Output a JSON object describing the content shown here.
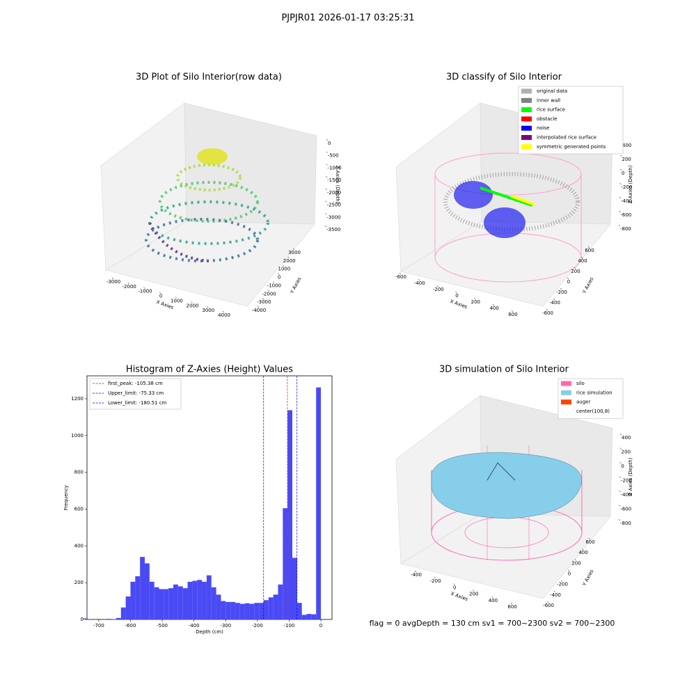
{
  "title": "PJPJR01 2026-01-17 03:25:31",
  "status": "flag = 0     avgDepth = 130 cm  sv1 = 700~2300  sv2 = 700~2300",
  "chart_data": [
    {
      "type": "scatter3d",
      "title": "3D Plot of Silo Interior(row data)",
      "x_label": "X Axies",
      "y_label": "Y Axies",
      "z_label": "Z Axies (Depth)",
      "xticks": [
        -3000,
        -2000,
        -1000,
        0,
        1000,
        2000,
        3000,
        4000
      ],
      "yticks": [
        -4000,
        -3000,
        -2000,
        -1000,
        0,
        1000,
        2000,
        3000
      ],
      "zticks": [
        0,
        -500,
        -1000,
        -1500,
        -2000,
        -2500,
        -3000,
        -3500
      ]
    },
    {
      "type": "scatter3d",
      "title": "3D classify of Silo Interior",
      "x_label": "X Axies",
      "y_label": "Y Axies",
      "z_label": "Z Axies (Depth)",
      "xticks": [
        -600,
        -400,
        -200,
        0,
        200,
        400,
        600
      ],
      "yticks": [
        -600,
        -400,
        -200,
        0,
        200,
        400,
        600
      ],
      "zticks": [
        400,
        200,
        0,
        -200,
        -400,
        -600,
        -800
      ],
      "legend": "upper right",
      "series": [
        {
          "name": "original data",
          "color": "#b0b0b0"
        },
        {
          "name": "inner wall",
          "color": "#808080"
        },
        {
          "name": "rice surface",
          "color": "#00ff00"
        },
        {
          "name": "obstacle",
          "color": "#ff0000"
        },
        {
          "name": "noise",
          "color": "#0000ff"
        },
        {
          "name": "interpolated rice surface",
          "color": "#800080"
        },
        {
          "name": "symmetric generated points",
          "color": "#ffff00"
        }
      ]
    },
    {
      "type": "histogram",
      "title": "Histogram of Z-Axies (Height) Values",
      "x_label": "Depth (cm)",
      "y_label": "Frequency",
      "color": "#4a4af5",
      "xlim": [
        -737,
        35
      ],
      "ylim": [
        0,
        1325
      ],
      "xticks": [
        -700,
        -600,
        -500,
        -400,
        -300,
        -200,
        -100,
        0
      ],
      "yticks": [
        0,
        200,
        400,
        600,
        800,
        1000,
        1200
      ],
      "bins": [
        -750,
        -735,
        -720,
        -705,
        -690,
        -675,
        -660,
        -645,
        -630,
        -615,
        -600,
        -585,
        -570,
        -555,
        -540,
        -525,
        -510,
        -495,
        -480,
        -465,
        -450,
        -435,
        -420,
        -405,
        -390,
        -375,
        -360,
        -345,
        -330,
        -315,
        -300,
        -285,
        -270,
        -255,
        -240,
        -225,
        -210,
        -195,
        -180,
        -165,
        -150,
        -135,
        -120,
        -105,
        -90,
        -75,
        -60,
        -45,
        -30,
        -15,
        0
      ],
      "counts": [
        5,
        0,
        0,
        0,
        0,
        3,
        2,
        8,
        65,
        125,
        205,
        235,
        340,
        305,
        205,
        175,
        165,
        165,
        170,
        190,
        180,
        170,
        205,
        210,
        215,
        205,
        240,
        175,
        135,
        100,
        95,
        95,
        90,
        85,
        88,
        85,
        90,
        90,
        105,
        120,
        135,
        190,
        605,
        1138,
        335,
        90,
        25,
        30,
        28,
        1262
      ],
      "legend": "upper left",
      "lines": [
        {
          "name": "first_peak: -105.38 cm",
          "value": -105.38,
          "color": "#ff0000"
        },
        {
          "name": "Upper_limit: -75.33 cm",
          "value": -75.33,
          "color": "#0000ff"
        },
        {
          "name": "Lower_limit: -180.51 cm",
          "value": -180.51,
          "color": "#0000ff"
        }
      ]
    },
    {
      "type": "surface3d",
      "title": "3D simulation of Silo Interior",
      "x_label": "X Axies",
      "y_label": "Y Axies",
      "z_label": "Z Axies (Depth)",
      "xticks": [
        -400,
        -200,
        0,
        200,
        400,
        600
      ],
      "yticks": [
        -600,
        -400,
        -200,
        0,
        200,
        400,
        600
      ],
      "zticks": [
        400,
        200,
        0,
        -200,
        -400,
        -600,
        -800
      ],
      "legend": "upper right",
      "series": [
        {
          "name": "silo",
          "color": "#ff69b4"
        },
        {
          "name": "rice simulation",
          "color": "#87ceeb"
        },
        {
          "name": "auger",
          "color": "#ff4500"
        },
        {
          "name": "center(100,8)",
          "color": "#ffffff"
        }
      ]
    }
  ]
}
